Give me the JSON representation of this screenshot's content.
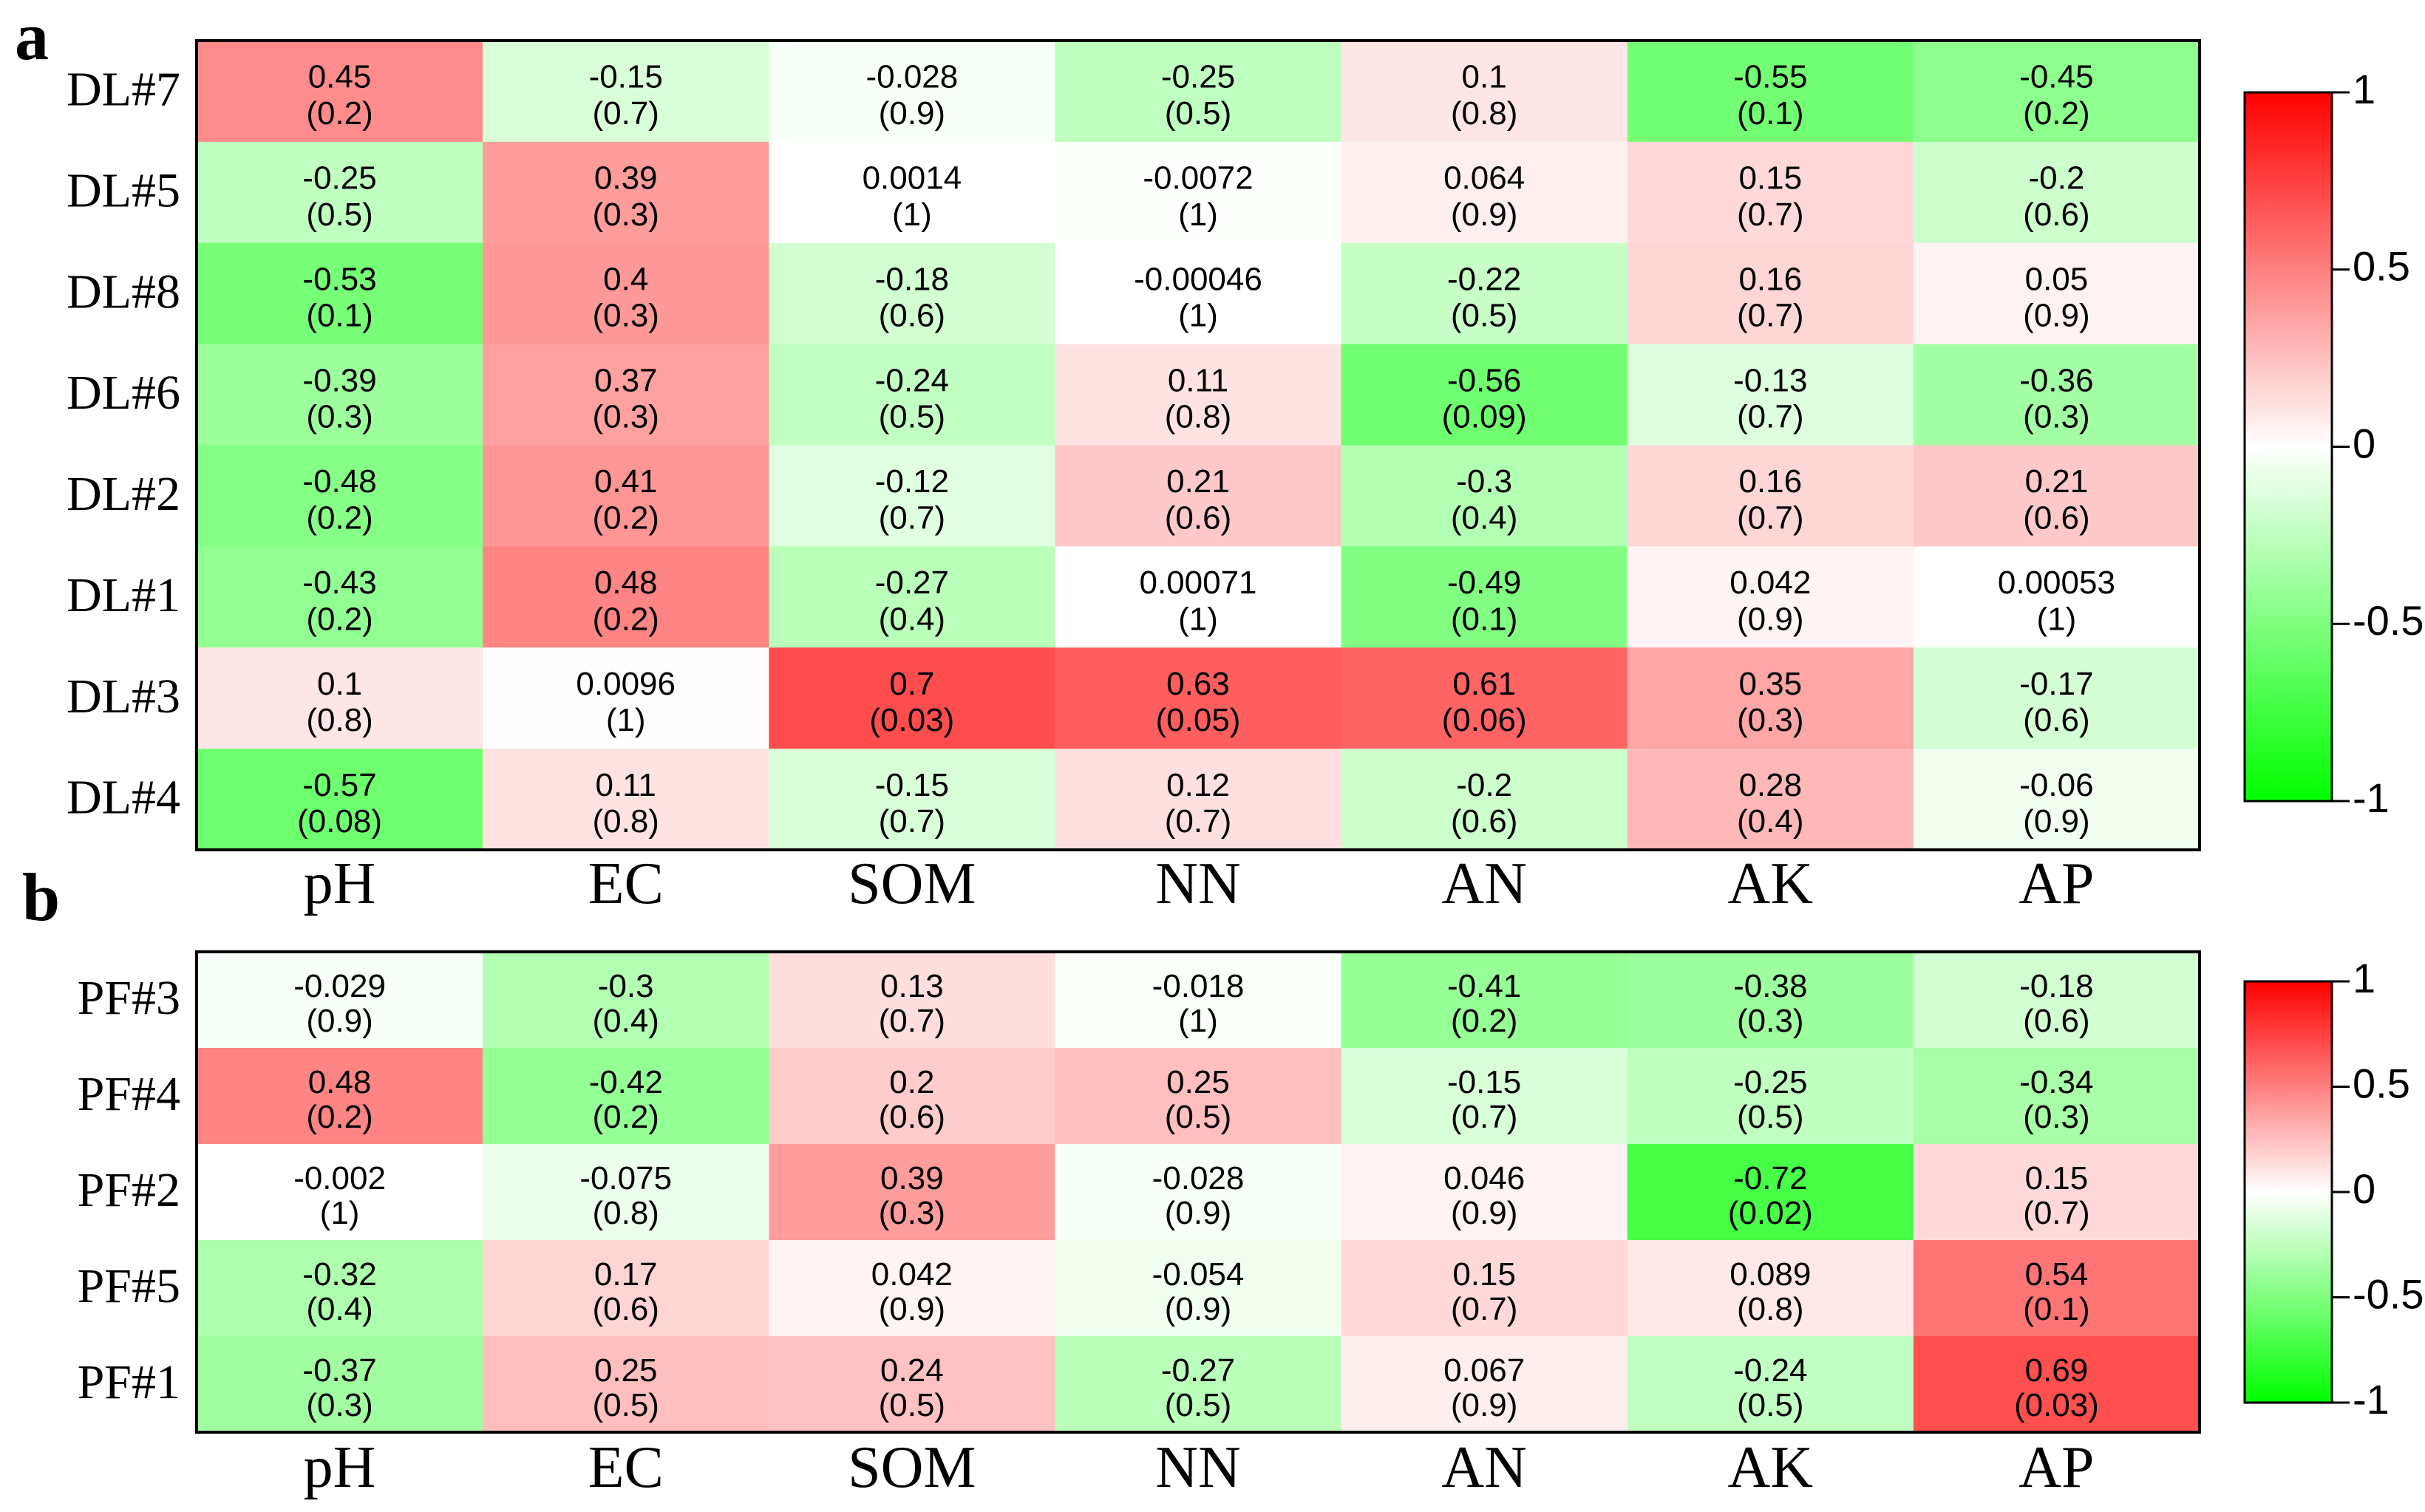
{
  "chart_data": [
    {
      "type": "heatmap",
      "panel": "a",
      "rows": [
        "DL#7",
        "DL#5",
        "DL#8",
        "DL#6",
        "DL#2",
        "DL#1",
        "DL#3",
        "DL#4"
      ],
      "columns": [
        "pH",
        "EC",
        "SOM",
        "NN",
        "AN",
        "AK",
        "AP"
      ],
      "values": [
        [
          0.45,
          -0.15,
          -0.028,
          -0.25,
          0.1,
          -0.55,
          -0.45
        ],
        [
          -0.25,
          0.39,
          0.0014,
          -0.0072,
          0.064,
          0.15,
          -0.2
        ],
        [
          -0.53,
          0.4,
          -0.18,
          -0.00046,
          -0.22,
          0.16,
          0.05
        ],
        [
          -0.39,
          0.37,
          -0.24,
          0.11,
          -0.56,
          -0.13,
          -0.36
        ],
        [
          -0.48,
          0.41,
          -0.12,
          0.21,
          -0.3,
          0.16,
          0.21
        ],
        [
          -0.43,
          0.48,
          -0.27,
          0.00071,
          -0.49,
          0.042,
          0.00053
        ],
        [
          0.1,
          0.0096,
          0.7,
          0.63,
          0.61,
          0.35,
          -0.17
        ],
        [
          -0.57,
          0.11,
          -0.15,
          0.12,
          -0.2,
          0.28,
          -0.06
        ]
      ],
      "p_values": [
        [
          "(0.2)",
          "(0.7)",
          "(0.9)",
          "(0.5)",
          "(0.8)",
          "(0.1)",
          "(0.2)"
        ],
        [
          "(0.5)",
          "(0.3)",
          "(1)",
          "(1)",
          "(0.9)",
          "(0.7)",
          "(0.6)"
        ],
        [
          "(0.1)",
          "(0.3)",
          "(0.6)",
          "(1)",
          "(0.5)",
          "(0.7)",
          "(0.9)"
        ],
        [
          "(0.3)",
          "(0.3)",
          "(0.5)",
          "(0.8)",
          "(0.09)",
          "(0.7)",
          "(0.3)"
        ],
        [
          "(0.2)",
          "(0.2)",
          "(0.7)",
          "(0.6)",
          "(0.4)",
          "(0.7)",
          "(0.6)"
        ],
        [
          "(0.2)",
          "(0.2)",
          "(0.4)",
          "(1)",
          "(0.1)",
          "(0.9)",
          "(1)"
        ],
        [
          "(0.8)",
          "(1)",
          "(0.03)",
          "(0.05)",
          "(0.06)",
          "(0.3)",
          "(0.6)"
        ],
        [
          "(0.08)",
          "(0.8)",
          "(0.7)",
          "(0.7)",
          "(0.6)",
          "(0.4)",
          "(0.9)"
        ]
      ],
      "colorbar": {
        "range": [
          -1,
          1
        ],
        "ticks": [
          "1",
          "0.5",
          "0",
          "-0.5",
          "-1"
        ]
      }
    },
    {
      "type": "heatmap",
      "panel": "b",
      "rows": [
        "PF#3",
        "PF#4",
        "PF#2",
        "PF#5",
        "PF#1"
      ],
      "columns": [
        "pH",
        "EC",
        "SOM",
        "NN",
        "AN",
        "AK",
        "AP"
      ],
      "values": [
        [
          -0.029,
          -0.3,
          0.13,
          -0.018,
          -0.41,
          -0.38,
          -0.18
        ],
        [
          0.48,
          -0.42,
          0.2,
          0.25,
          -0.15,
          -0.25,
          -0.34
        ],
        [
          -0.002,
          -0.075,
          0.39,
          -0.028,
          0.046,
          -0.72,
          0.15
        ],
        [
          -0.32,
          0.17,
          0.042,
          -0.054,
          0.15,
          0.089,
          0.54
        ],
        [
          -0.37,
          0.25,
          0.24,
          -0.27,
          0.067,
          -0.24,
          0.69
        ]
      ],
      "p_values": [
        [
          "(0.9)",
          "(0.4)",
          "(0.7)",
          "(1)",
          "(0.2)",
          "(0.3)",
          "(0.6)"
        ],
        [
          "(0.2)",
          "(0.2)",
          "(0.6)",
          "(0.5)",
          "(0.7)",
          "(0.5)",
          "(0.3)"
        ],
        [
          "(1)",
          "(0.8)",
          "(0.3)",
          "(0.9)",
          "(0.9)",
          "(0.02)",
          "(0.7)"
        ],
        [
          "(0.4)",
          "(0.6)",
          "(0.9)",
          "(0.9)",
          "(0.7)",
          "(0.8)",
          "(0.1)"
        ],
        [
          "(0.3)",
          "(0.5)",
          "(0.5)",
          "(0.5)",
          "(0.9)",
          "(0.5)",
          "(0.03)"
        ]
      ],
      "colorbar": {
        "range": [
          -1,
          1
        ],
        "ticks": [
          "1",
          "0.5",
          "0",
          "-0.5",
          "-1"
        ]
      }
    }
  ],
  "colors": {
    "positive": "#ff0000",
    "zero": "#ffffff",
    "negative": "#00ff00",
    "border": "#000000"
  }
}
